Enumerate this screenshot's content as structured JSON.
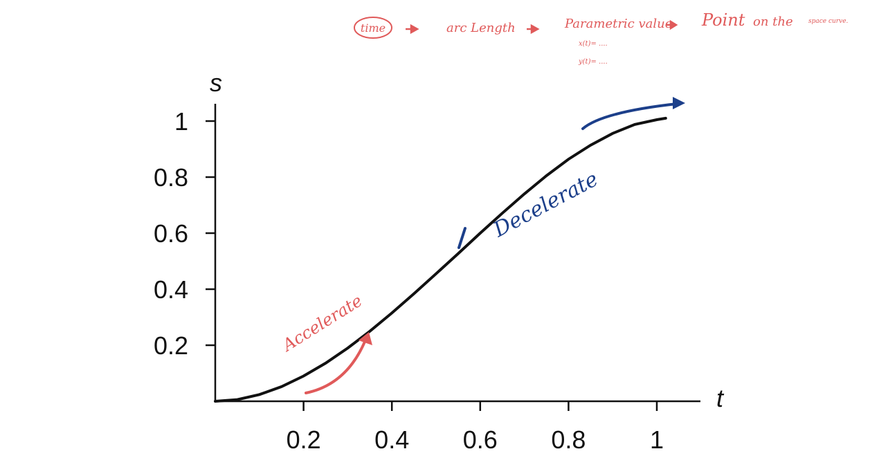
{
  "chart_data": {
    "type": "line",
    "xlabel": "t",
    "ylabel": "s",
    "xlim": [
      0,
      1.07
    ],
    "ylim": [
      0,
      1.06
    ],
    "x_ticks": [
      "0.2",
      "0.4",
      "0.6",
      "0.8",
      "1"
    ],
    "x_tick_values": [
      0.2,
      0.4,
      0.6,
      0.8,
      1.0
    ],
    "y_ticks": [
      "0.2",
      "0.4",
      "0.6",
      "0.8",
      "1"
    ],
    "y_tick_values": [
      0.2,
      0.4,
      0.6,
      0.8,
      1.0
    ],
    "grid": false,
    "series": [
      {
        "color": "#111111",
        "x": [
          0,
          0.05,
          0.1,
          0.15,
          0.2,
          0.25,
          0.3,
          0.35,
          0.4,
          0.45,
          0.5,
          0.55,
          0.6,
          0.65,
          0.7,
          0.75,
          0.8,
          0.85,
          0.9,
          0.95,
          1.0,
          1.02
        ],
        "y": [
          0,
          0.006,
          0.024,
          0.052,
          0.09,
          0.136,
          0.19,
          0.25,
          0.315,
          0.384,
          0.455,
          0.527,
          0.6,
          0.671,
          0.74,
          0.805,
          0.864,
          0.914,
          0.956,
          0.988,
          1.005,
          1.01
        ]
      }
    ],
    "annotations": {
      "accelerate": {
        "text": "Accelerate",
        "color": "#e05a5a"
      },
      "decelerate": {
        "text": "Decelerate",
        "color": "#1c3f8a"
      },
      "top_note": {
        "color": "#e05a5a",
        "items": [
          "time",
          "arc Length",
          "Parametric value",
          "Point",
          "on the",
          "space curve."
        ],
        "sub_items": [
          "x(t)= ....",
          "y(t)= ...."
        ]
      }
    }
  }
}
